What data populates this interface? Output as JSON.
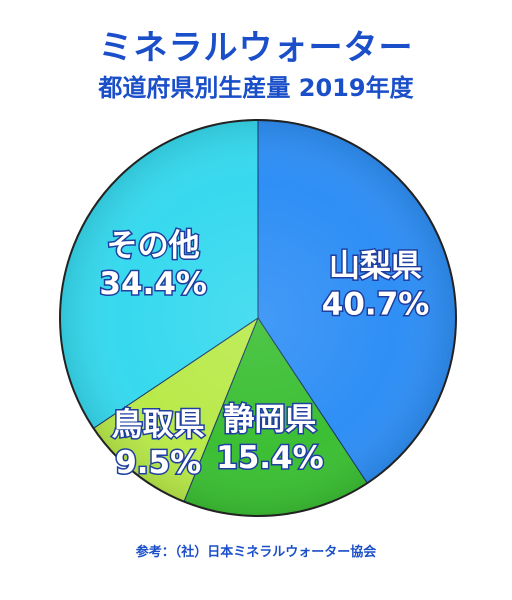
{
  "title": "ミネラルウォーター",
  "subtitle": "都道府県別生産量 2019年度",
  "source": "参考：（社）日本ミネラルウォーター協会",
  "chart_data": {
    "type": "pie",
    "title": "ミネラルウォーター",
    "subtitle": "都道府県別生産量 2019年度",
    "start": "12 o'clock",
    "direction": "clockwise",
    "slices": [
      {
        "label": "山梨県",
        "value": 40.7,
        "value_label": "40.7%",
        "color": "#2f8ff5"
      },
      {
        "label": "静岡県",
        "value": 15.4,
        "value_label": "15.4%",
        "color": "#3cbf34"
      },
      {
        "label": "鳥取県",
        "value": 9.5,
        "value_label": "9.5%",
        "color": "#b9ea4a"
      },
      {
        "label": "その他",
        "value": 34.4,
        "value_label": "34.4%",
        "color": "#37d9ee"
      }
    ]
  }
}
